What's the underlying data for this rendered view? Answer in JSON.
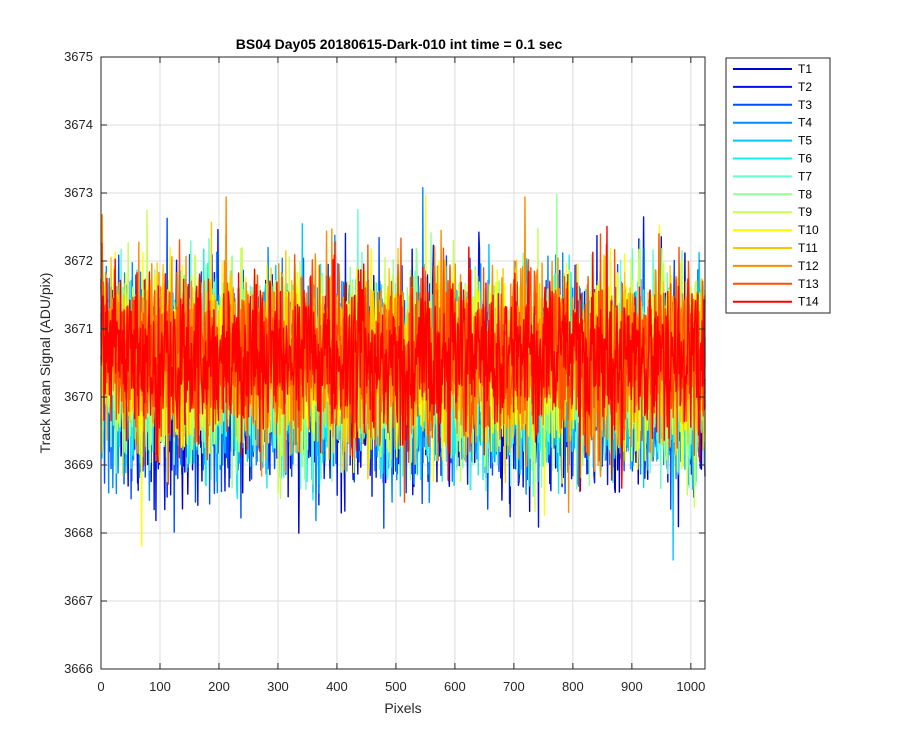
{
  "chart_data": {
    "type": "line",
    "title": "BS04 Day05 20180615-Dark-010 int time = 0.1 sec",
    "xlabel": "Pixels",
    "ylabel": "Track Mean Signal (ADU/pix)",
    "xlim": [
      0,
      1024
    ],
    "ylim": [
      3666,
      3675
    ],
    "xticks": [
      0,
      100,
      200,
      300,
      400,
      500,
      600,
      700,
      800,
      900,
      1000
    ],
    "yticks": [
      3666,
      3667,
      3668,
      3669,
      3670,
      3671,
      3672,
      3673,
      3674,
      3675
    ],
    "grid": true,
    "legend_position": "outside-top-right",
    "n_points": 1024,
    "series": [
      {
        "name": "T1",
        "color": "#0000c8",
        "mean": 3670.1,
        "noise": 0.95
      },
      {
        "name": "T2",
        "color": "#0014e6",
        "mean": 3670.2,
        "noise": 0.95
      },
      {
        "name": "T3",
        "color": "#0050ff",
        "mean": 3670.2,
        "noise": 0.9
      },
      {
        "name": "T4",
        "color": "#008cff",
        "mean": 3670.3,
        "noise": 0.9
      },
      {
        "name": "T5",
        "color": "#00c8ff",
        "mean": 3670.3,
        "noise": 0.9
      },
      {
        "name": "T6",
        "color": "#14f0f0",
        "mean": 3670.3,
        "noise": 0.85
      },
      {
        "name": "T7",
        "color": "#64ffc8",
        "mean": 3670.4,
        "noise": 0.85
      },
      {
        "name": "T8",
        "color": "#96ff96",
        "mean": 3670.4,
        "noise": 0.85
      },
      {
        "name": "T9",
        "color": "#c8ff50",
        "mean": 3670.5,
        "noise": 0.85
      },
      {
        "name": "T10",
        "color": "#ffff00",
        "mean": 3670.5,
        "noise": 0.85
      },
      {
        "name": "T11",
        "color": "#ffc800",
        "mean": 3670.5,
        "noise": 0.8
      },
      {
        "name": "T12",
        "color": "#ff8c00",
        "mean": 3670.6,
        "noise": 0.8
      },
      {
        "name": "T13",
        "color": "#ff5000",
        "mean": 3670.6,
        "noise": 0.8
      },
      {
        "name": "T14",
        "color": "#ff0000",
        "mean": 3670.6,
        "noise": 0.75
      }
    ]
  }
}
